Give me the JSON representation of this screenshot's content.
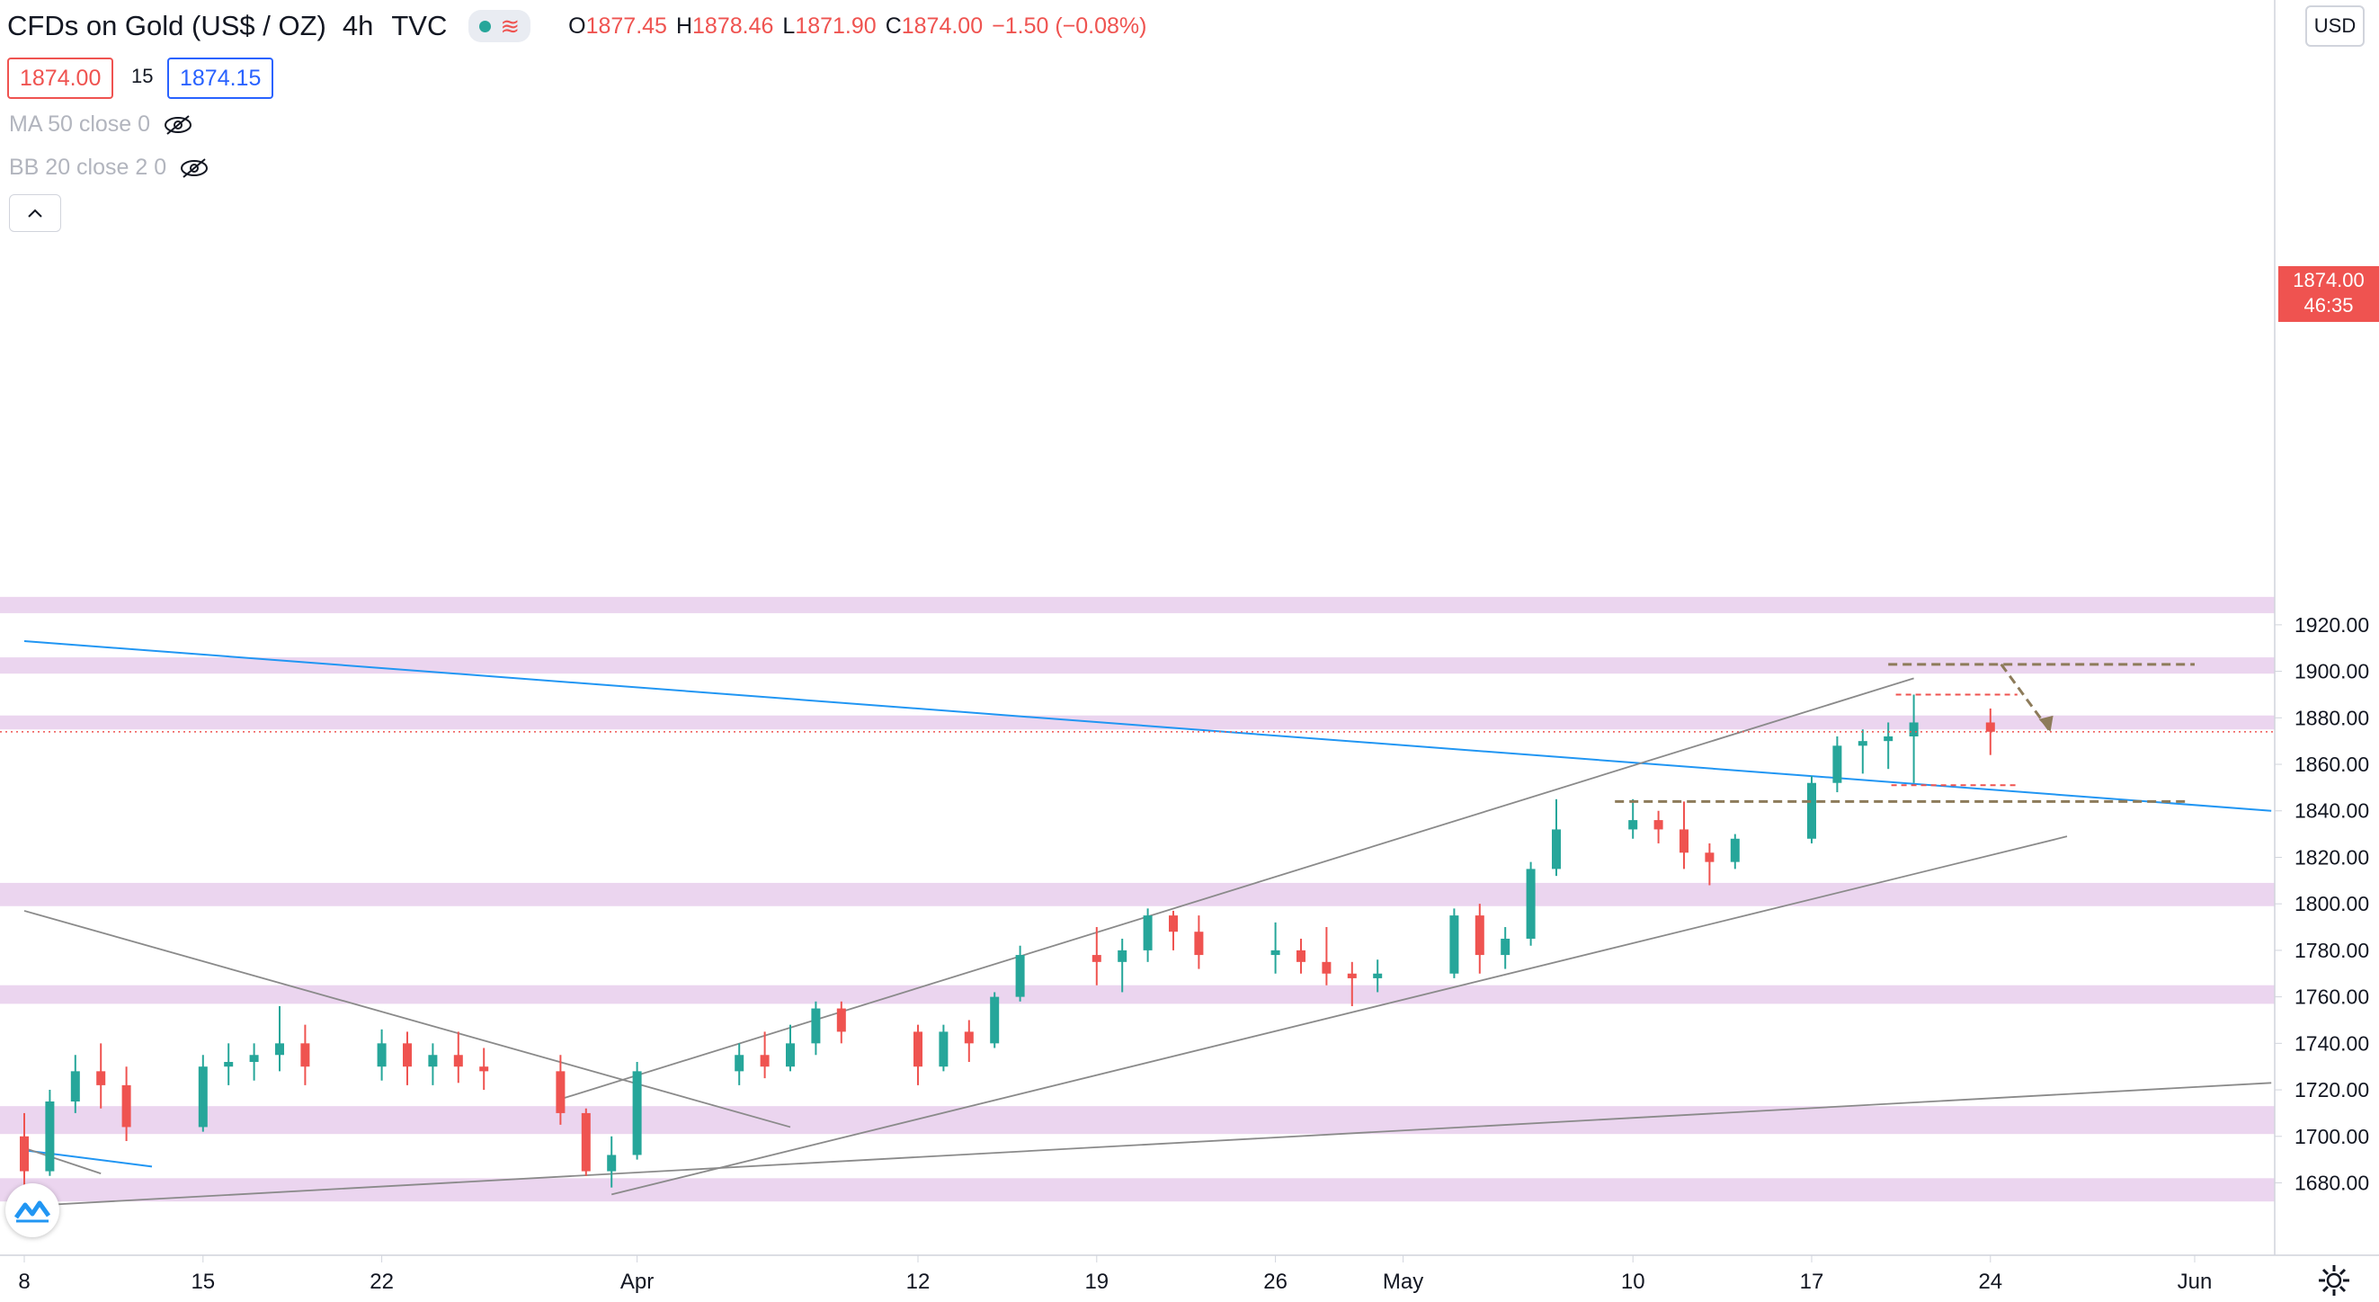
{
  "header": {
    "symbol": "CFDs on Gold (US$ / OZ)",
    "interval": "4h",
    "source": "TVC",
    "ohlc": {
      "o_label": "O",
      "o": "1877.45",
      "h_label": "H",
      "h": "1878.46",
      "l_label": "L",
      "l": "1871.90",
      "c_label": "C",
      "c": "1874.00",
      "change": "−1.50 (−0.08%)"
    }
  },
  "quote": {
    "bid": "1874.00",
    "spread": "15",
    "ask": "1874.15"
  },
  "indicators": [
    {
      "label": "MA 50 close 0",
      "icon": "eye-crossed-icon"
    },
    {
      "label": "BB 20 close 2 0",
      "icon": "eye-crossed-icon"
    }
  ],
  "currency_button": "USD",
  "last_price": {
    "price": "1874.00",
    "countdown": "46:35"
  },
  "colors": {
    "up": "#26a69a",
    "down": "#ef5350",
    "zone": "#e1bee7",
    "trendline": "#8a8a8a",
    "channel_blue": "#2196f3",
    "dashed_brown": "#8d7b5a"
  },
  "chart_data": {
    "type": "candlestick",
    "title": "CFDs on Gold (US$ / OZ)",
    "interval": "4h",
    "y_axis": {
      "ticks": [
        "1680.00",
        "1700.00",
        "1720.00",
        "1740.00",
        "1760.00",
        "1780.00",
        "1800.00",
        "1820.00",
        "1840.00",
        "1860.00",
        "1880.00",
        "1900.00",
        "1920.00"
      ],
      "range": [
        1666,
        1932
      ]
    },
    "x_axis": {
      "ticks": [
        "8",
        "15",
        "22",
        "Apr",
        "12",
        "19",
        "26",
        "May",
        "10",
        "17",
        "24",
        "Jun"
      ]
    },
    "time_range": [
      "Mar 8",
      "Jun 1"
    ],
    "last_close": 1874.0,
    "resistance_zones": [
      [
        1925,
        1932
      ],
      [
        1899,
        1906
      ],
      [
        1875,
        1881
      ],
      [
        1799,
        1809
      ],
      [
        1757,
        1765
      ],
      [
        1701,
        1713
      ],
      [
        1672,
        1682
      ]
    ],
    "key_levels": [
      1890,
      1851,
      1903,
      1844
    ],
    "candles_approx": [
      [
        "Mar 8",
        1700,
        1710,
        1678,
        1685
      ],
      [
        "Mar 9",
        1685,
        1720,
        1683,
        1715
      ],
      [
        "Mar 10",
        1715,
        1735,
        1710,
        1728
      ],
      [
        "Mar 11",
        1728,
        1740,
        1712,
        1722
      ],
      [
        "Mar 12",
        1722,
        1730,
        1698,
        1704
      ],
      [
        "Mar 15",
        1704,
        1735,
        1702,
        1730
      ],
      [
        "Mar 16",
        1730,
        1740,
        1722,
        1732
      ],
      [
        "Mar 17",
        1732,
        1740,
        1724,
        1735
      ],
      [
        "Mar 18",
        1735,
        1756,
        1728,
        1740
      ],
      [
        "Mar 19",
        1740,
        1748,
        1722,
        1730
      ],
      [
        "Mar 22",
        1730,
        1746,
        1724,
        1740
      ],
      [
        "Mar 23",
        1740,
        1745,
        1722,
        1730
      ],
      [
        "Mar 24",
        1730,
        1740,
        1722,
        1735
      ],
      [
        "Mar 25",
        1735,
        1745,
        1723,
        1730
      ],
      [
        "Mar 26",
        1730,
        1738,
        1720,
        1728
      ],
      [
        "Mar 29",
        1728,
        1735,
        1705,
        1710
      ],
      [
        "Mar 30",
        1710,
        1712,
        1683,
        1685
      ],
      [
        "Mar 31",
        1685,
        1700,
        1678,
        1692
      ],
      [
        "Apr 1",
        1692,
        1732,
        1690,
        1728
      ],
      [
        "Apr 5",
        1728,
        1740,
        1722,
        1735
      ],
      [
        "Apr 6",
        1735,
        1745,
        1725,
        1730
      ],
      [
        "Apr 7",
        1730,
        1748,
        1728,
        1740
      ],
      [
        "Apr 8",
        1740,
        1758,
        1735,
        1755
      ],
      [
        "Apr 9",
        1755,
        1758,
        1740,
        1745
      ],
      [
        "Apr 12",
        1745,
        1748,
        1722,
        1730
      ],
      [
        "Apr 13",
        1730,
        1748,
        1728,
        1745
      ],
      [
        "Apr 14",
        1745,
        1750,
        1732,
        1740
      ],
      [
        "Apr 15",
        1740,
        1762,
        1738,
        1760
      ],
      [
        "Apr 16",
        1760,
        1782,
        1758,
        1778
      ],
      [
        "Apr 19",
        1778,
        1790,
        1765,
        1775
      ],
      [
        "Apr 20",
        1775,
        1785,
        1762,
        1780
      ],
      [
        "Apr 21",
        1780,
        1798,
        1775,
        1795
      ],
      [
        "Apr 22",
        1795,
        1797,
        1780,
        1788
      ],
      [
        "Apr 23",
        1788,
        1795,
        1772,
        1778
      ],
      [
        "Apr 26",
        1778,
        1792,
        1770,
        1780
      ],
      [
        "Apr 27",
        1780,
        1785,
        1770,
        1775
      ],
      [
        "Apr 28",
        1775,
        1790,
        1765,
        1770
      ],
      [
        "Apr 29",
        1770,
        1775,
        1756,
        1768
      ],
      [
        "Apr 30",
        1768,
        1776,
        1762,
        1770
      ],
      [
        "May 3",
        1770,
        1798,
        1768,
        1795
      ],
      [
        "May 4",
        1795,
        1800,
        1770,
        1778
      ],
      [
        "May 5",
        1778,
        1790,
        1772,
        1785
      ],
      [
        "May 6",
        1785,
        1818,
        1782,
        1815
      ],
      [
        "May 7",
        1815,
        1845,
        1812,
        1832
      ],
      [
        "May 10",
        1832,
        1845,
        1828,
        1836
      ],
      [
        "May 11",
        1836,
        1840,
        1826,
        1832
      ],
      [
        "May 12",
        1832,
        1844,
        1815,
        1822
      ],
      [
        "May 13",
        1822,
        1826,
        1808,
        1818
      ],
      [
        "May 14",
        1818,
        1830,
        1815,
        1828
      ],
      [
        "May 17",
        1828,
        1855,
        1826,
        1852
      ],
      [
        "May 18",
        1852,
        1872,
        1848,
        1868
      ],
      [
        "May 19",
        1868,
        1875,
        1856,
        1870
      ],
      [
        "May 20",
        1870,
        1878,
        1858,
        1872
      ],
      [
        "May 21",
        1872,
        1890,
        1852,
        1878
      ],
      [
        "May 24",
        1878,
        1884,
        1864,
        1874
      ]
    ]
  }
}
